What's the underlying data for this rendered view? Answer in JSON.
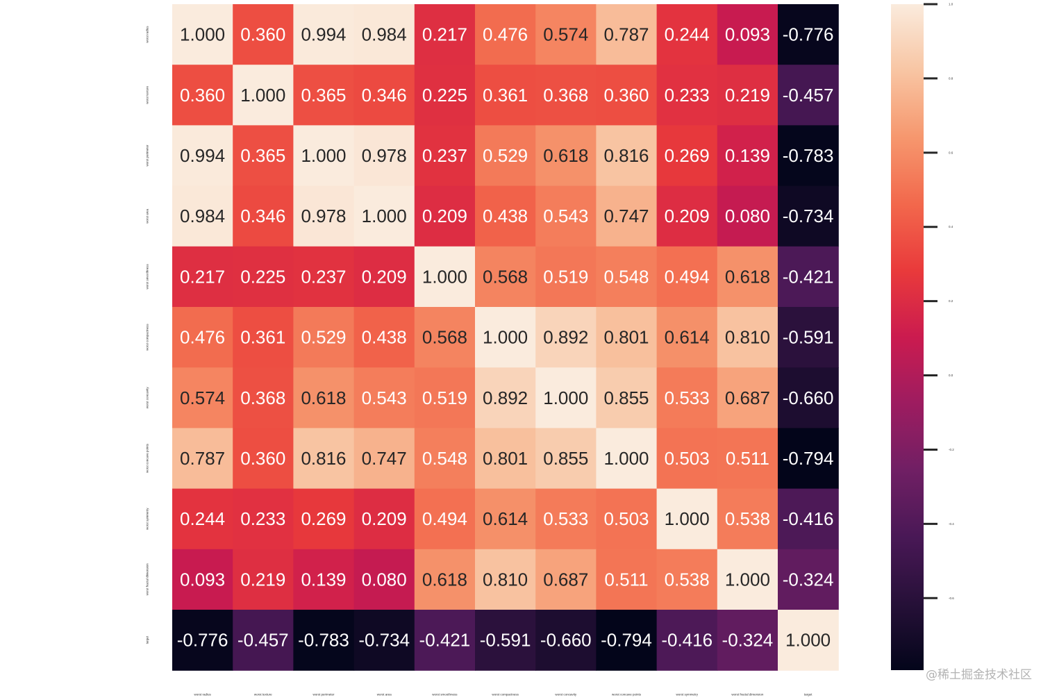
{
  "chart_data": {
    "type": "heatmap",
    "title": "",
    "xlabel": "",
    "ylabel": "",
    "labels": [
      "worst radius",
      "worst texture",
      "worst perimeter",
      "worst area",
      "worst smoothness",
      "worst compactness",
      "worst concavity",
      "worst concave points",
      "worst symmetry",
      "worst fractal dimension",
      "target"
    ],
    "values": [
      [
        1.0,
        0.36,
        0.994,
        0.984,
        0.217,
        0.476,
        0.574,
        0.787,
        0.244,
        0.093,
        -0.776
      ],
      [
        0.36,
        1.0,
        0.365,
        0.346,
        0.225,
        0.361,
        0.368,
        0.36,
        0.233,
        0.219,
        -0.457
      ],
      [
        0.994,
        0.365,
        1.0,
        0.978,
        0.237,
        0.529,
        0.618,
        0.816,
        0.269,
        0.139,
        -0.783
      ],
      [
        0.984,
        0.346,
        0.978,
        1.0,
        0.209,
        0.438,
        0.543,
        0.747,
        0.209,
        0.08,
        -0.734
      ],
      [
        0.217,
        0.225,
        0.237,
        0.209,
        1.0,
        0.568,
        0.519,
        0.548,
        0.494,
        0.618,
        -0.421
      ],
      [
        0.476,
        0.361,
        0.529,
        0.438,
        0.568,
        1.0,
        0.892,
        0.801,
        0.614,
        0.81,
        -0.591
      ],
      [
        0.574,
        0.368,
        0.618,
        0.543,
        0.519,
        0.892,
        1.0,
        0.855,
        0.533,
        0.687,
        -0.66
      ],
      [
        0.787,
        0.36,
        0.816,
        0.747,
        0.548,
        0.801,
        0.855,
        1.0,
        0.503,
        0.511,
        -0.794
      ],
      [
        0.244,
        0.233,
        0.269,
        0.209,
        0.494,
        0.614,
        0.533,
        0.503,
        1.0,
        0.538,
        -0.416
      ],
      [
        0.093,
        0.219,
        0.139,
        0.08,
        0.618,
        0.81,
        0.687,
        0.511,
        0.538,
        1.0,
        -0.324
      ],
      [
        -0.776,
        -0.457,
        -0.783,
        -0.734,
        -0.421,
        -0.591,
        -0.66,
        -0.794,
        -0.416,
        -0.324,
        1.0
      ]
    ],
    "value_format": "0.000",
    "colormap": "rocket",
    "colorbar": {
      "range": [
        -0.794,
        1.0
      ],
      "ticks": [
        1.0,
        0.8,
        0.6,
        0.4,
        0.2,
        0.0,
        -0.2,
        -0.4,
        -0.6
      ],
      "tick_labels": [
        "1.0",
        "0.8",
        "0.6",
        "0.4",
        "0.2",
        "0.0",
        "-0.2",
        "-0.4",
        "-0.6"
      ]
    },
    "legend_position": "right"
  },
  "watermark": "@稀土掘金技术社区"
}
